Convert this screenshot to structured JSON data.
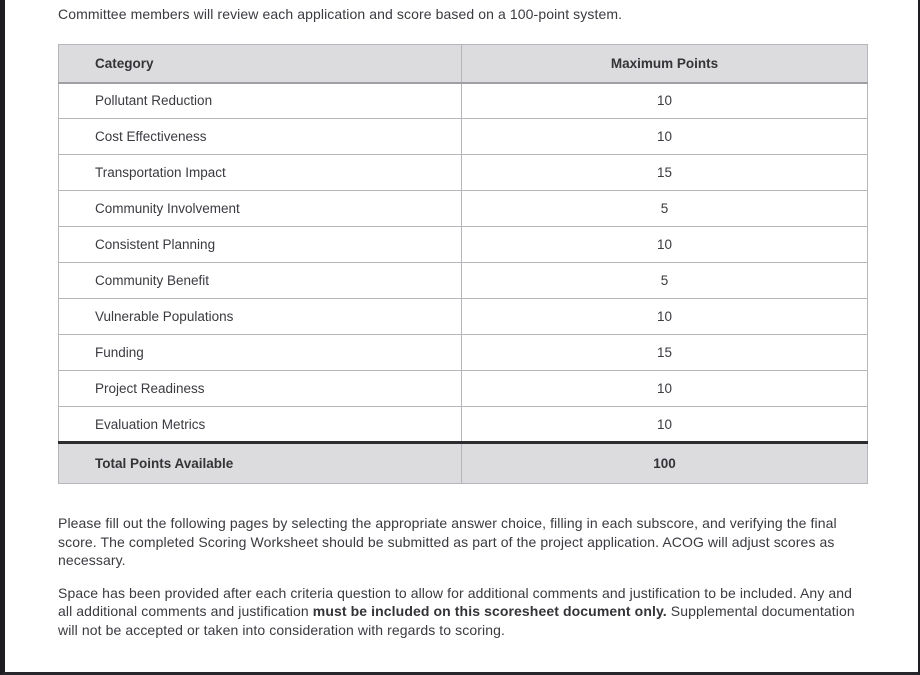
{
  "page": {
    "intro": "Committee members will review each application and score based on a 100-point system.",
    "paragraph1": "Please fill out the following pages by selecting the appropriate answer choice, filling in each subscore, and verifying the final score. The completed Scoring Worksheet should be submitted as part of the project application. ACOG will adjust scores as necessary.",
    "paragraph2_lead": "Space has been provided after each criteria question to allow for additional comments and justification to be included. Any and all additional comments and justification ",
    "paragraph2_bold": "must be included on this scoresheet document only.",
    "paragraph2_tail": " Supplemental documentation will not be accepted or taken into consideration with regards to scoring."
  },
  "table": {
    "headers": [
      "Category",
      "Maximum Points"
    ],
    "rows": [
      {
        "category": "Pollutant Reduction",
        "points": "10"
      },
      {
        "category": "Cost Effectiveness",
        "points": "10"
      },
      {
        "category": "Transportation Impact",
        "points": "15"
      },
      {
        "category": "Community Involvement",
        "points": "5"
      },
      {
        "category": "Consistent Planning",
        "points": "10"
      },
      {
        "category": "Community Benefit",
        "points": "5"
      },
      {
        "category": "Vulnerable Populations",
        "points": "10"
      },
      {
        "category": "Funding",
        "points": "15"
      },
      {
        "category": "Project Readiness",
        "points": "10"
      },
      {
        "category": "Evaluation Metrics",
        "points": "10"
      }
    ],
    "total": {
      "category": "Total Points Available",
      "points": "100"
    }
  },
  "colors": {
    "header_row_bg": "#dcdcde",
    "total_row_bg": "#dcdcde",
    "table_border": "#b6b6ba",
    "total_top_border": "#2c2c30",
    "page_frame": "#1d1d21",
    "text": "#3a3a40"
  }
}
